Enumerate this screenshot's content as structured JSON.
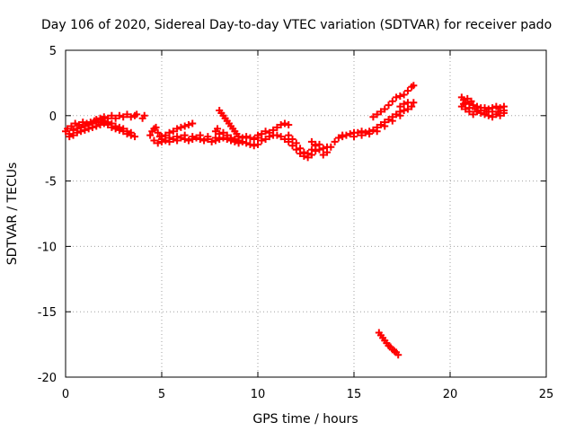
{
  "chart_data": {
    "type": "scatter",
    "title": "Day 106 of 2020, Sidereal Day-to-day VTEC variation (SDTVAR) for receiver pado",
    "xlabel": "GPS time / hours",
    "ylabel": "SDTVAR / TECUs",
    "xlim": [
      0,
      25
    ],
    "ylim": [
      -20,
      5
    ],
    "xticks": [
      "0",
      "5",
      "10",
      "15",
      "20",
      "25"
    ],
    "yticks": [
      "5",
      "0",
      "-5",
      "-10",
      "-15",
      "-20"
    ],
    "grid": true,
    "marker": "plus",
    "series_color": "#ff0000",
    "series": [
      {
        "name": "SDTVAR",
        "points": [
          [
            0.0,
            -1.2
          ],
          [
            0.1,
            -1.0
          ],
          [
            0.2,
            -1.4
          ],
          [
            0.3,
            -0.8
          ],
          [
            0.4,
            -1.1
          ],
          [
            0.5,
            -0.6
          ],
          [
            0.6,
            -1.0
          ],
          [
            0.7,
            -0.7
          ],
          [
            0.8,
            -0.9
          ],
          [
            0.9,
            -0.5
          ],
          [
            1.0,
            -0.8
          ],
          [
            1.1,
            -0.6
          ],
          [
            1.2,
            -0.7
          ],
          [
            1.3,
            -0.5
          ],
          [
            1.4,
            -0.6
          ],
          [
            1.5,
            -0.4
          ],
          [
            1.6,
            -0.3
          ],
          [
            1.7,
            -0.5
          ],
          [
            1.8,
            -0.2
          ],
          [
            1.9,
            -0.3
          ],
          [
            2.0,
            -0.1
          ],
          [
            2.2,
            -0.2
          ],
          [
            2.4,
            0.0
          ],
          [
            2.6,
            -0.2
          ],
          [
            2.8,
            0.0
          ],
          [
            3.0,
            -0.1
          ],
          [
            3.2,
            0.1
          ],
          [
            3.4,
            -0.1
          ],
          [
            3.6,
            0.0
          ],
          [
            0.2,
            -1.6
          ],
          [
            0.4,
            -1.5
          ],
          [
            0.6,
            -1.3
          ],
          [
            0.8,
            -1.2
          ],
          [
            1.0,
            -1.1
          ],
          [
            1.2,
            -1.0
          ],
          [
            1.4,
            -0.9
          ],
          [
            1.6,
            -0.8
          ],
          [
            1.8,
            -0.7
          ],
          [
            2.0,
            -0.6
          ],
          [
            2.2,
            -0.7
          ],
          [
            2.4,
            -0.9
          ],
          [
            2.6,
            -1.0
          ],
          [
            2.8,
            -1.1
          ],
          [
            3.0,
            -1.2
          ],
          [
            3.2,
            -1.4
          ],
          [
            3.4,
            -1.5
          ],
          [
            3.6,
            -1.6
          ],
          [
            1.8,
            -0.5
          ],
          [
            2.0,
            -0.4
          ],
          [
            2.2,
            -0.5
          ],
          [
            2.4,
            -0.6
          ],
          [
            2.6,
            -0.8
          ],
          [
            2.8,
            -0.9
          ],
          [
            3.0,
            -1.0
          ],
          [
            3.2,
            -1.2
          ],
          [
            3.4,
            -1.3
          ],
          [
            3.7,
            0.1
          ],
          [
            4.0,
            -0.2
          ],
          [
            4.1,
            0.0
          ],
          [
            4.4,
            -1.5
          ],
          [
            4.5,
            -1.2
          ],
          [
            4.6,
            -1.0
          ],
          [
            4.7,
            -0.9
          ],
          [
            4.8,
            -1.3
          ],
          [
            4.9,
            -1.6
          ],
          [
            5.0,
            -1.8
          ],
          [
            5.2,
            -1.5
          ],
          [
            5.4,
            -1.3
          ],
          [
            5.6,
            -1.2
          ],
          [
            5.8,
            -1.0
          ],
          [
            6.0,
            -0.9
          ],
          [
            6.2,
            -0.8
          ],
          [
            6.4,
            -0.7
          ],
          [
            6.6,
            -0.6
          ],
          [
            4.6,
            -1.9
          ],
          [
            4.8,
            -2.1
          ],
          [
            5.0,
            -2.0
          ],
          [
            5.2,
            -1.9
          ],
          [
            5.4,
            -2.0
          ],
          [
            5.6,
            -1.8
          ],
          [
            5.8,
            -1.9
          ],
          [
            6.0,
            -1.7
          ],
          [
            6.2,
            -1.8
          ],
          [
            6.4,
            -1.9
          ],
          [
            6.6,
            -1.8
          ],
          [
            6.8,
            -1.7
          ],
          [
            7.0,
            -1.8
          ],
          [
            7.2,
            -1.9
          ],
          [
            7.4,
            -1.8
          ],
          [
            7.6,
            -2.0
          ],
          [
            7.8,
            -1.9
          ],
          [
            8.0,
            -1.8
          ],
          [
            8.2,
            -1.7
          ],
          [
            8.4,
            -1.8
          ],
          [
            8.6,
            -1.9
          ],
          [
            8.8,
            -2.0
          ],
          [
            9.0,
            -2.1
          ],
          [
            9.2,
            -2.0
          ],
          [
            9.4,
            -2.1
          ],
          [
            9.6,
            -2.2
          ],
          [
            9.8,
            -2.3
          ],
          [
            10.0,
            -2.2
          ],
          [
            5.0,
            -1.6
          ],
          [
            5.4,
            -1.7
          ],
          [
            5.8,
            -1.6
          ],
          [
            6.2,
            -1.5
          ],
          [
            6.6,
            -1.6
          ],
          [
            7.0,
            -1.5
          ],
          [
            7.4,
            -1.6
          ],
          [
            7.8,
            -1.7
          ],
          [
            7.8,
            -1.2
          ],
          [
            7.9,
            -1.0
          ],
          [
            8.0,
            -1.4
          ],
          [
            8.0,
            0.4
          ],
          [
            8.1,
            0.2
          ],
          [
            8.2,
            0.0
          ],
          [
            8.3,
            -0.2
          ],
          [
            8.4,
            -0.4
          ],
          [
            8.5,
            -0.6
          ],
          [
            8.6,
            -0.8
          ],
          [
            8.7,
            -1.0
          ],
          [
            8.8,
            -1.2
          ],
          [
            8.9,
            -1.4
          ],
          [
            9.0,
            -1.6
          ],
          [
            9.2,
            -1.7
          ],
          [
            9.4,
            -1.6
          ],
          [
            9.6,
            -1.7
          ],
          [
            9.8,
            -1.8
          ],
          [
            10.0,
            -1.7
          ],
          [
            8.2,
            -1.3
          ],
          [
            8.4,
            -1.5
          ],
          [
            8.6,
            -1.7
          ],
          [
            8.8,
            -1.8
          ],
          [
            9.0,
            -1.9
          ],
          [
            10.0,
            -1.5
          ],
          [
            10.2,
            -1.4
          ],
          [
            10.4,
            -1.2
          ],
          [
            10.6,
            -1.3
          ],
          [
            10.8,
            -1.1
          ],
          [
            11.0,
            -0.9
          ],
          [
            11.2,
            -0.7
          ],
          [
            11.4,
            -0.6
          ],
          [
            11.6,
            -0.7
          ],
          [
            10.2,
            -1.9
          ],
          [
            10.4,
            -1.8
          ],
          [
            10.6,
            -1.6
          ],
          [
            10.8,
            -1.5
          ],
          [
            11.0,
            -1.5
          ],
          [
            11.2,
            -1.6
          ],
          [
            11.4,
            -1.8
          ],
          [
            11.6,
            -2.0
          ],
          [
            11.8,
            -2.3
          ],
          [
            12.0,
            -2.6
          ],
          [
            12.2,
            -2.9
          ],
          [
            12.4,
            -3.1
          ],
          [
            12.6,
            -3.2
          ],
          [
            12.8,
            -3.0
          ],
          [
            13.0,
            -2.7
          ],
          [
            11.6,
            -1.5
          ],
          [
            11.8,
            -1.8
          ],
          [
            12.0,
            -2.1
          ],
          [
            12.2,
            -2.5
          ],
          [
            12.4,
            -2.8
          ],
          [
            12.6,
            -2.9
          ],
          [
            12.8,
            -2.6
          ],
          [
            13.0,
            -2.3
          ],
          [
            13.2,
            -2.2
          ],
          [
            13.4,
            -2.5
          ],
          [
            13.6,
            -2.4
          ],
          [
            12.8,
            -2.0
          ],
          [
            13.0,
            -2.2
          ],
          [
            13.2,
            -2.6
          ],
          [
            13.4,
            -3.0
          ],
          [
            13.6,
            -2.8
          ],
          [
            13.8,
            -2.4
          ],
          [
            14.0,
            -2.0
          ],
          [
            14.2,
            -1.7
          ],
          [
            14.4,
            -1.5
          ],
          [
            14.4,
            -1.6
          ],
          [
            14.6,
            -1.5
          ],
          [
            14.8,
            -1.4
          ],
          [
            15.0,
            -1.3
          ],
          [
            15.2,
            -1.3
          ],
          [
            15.4,
            -1.2
          ],
          [
            15.6,
            -1.3
          ],
          [
            15.8,
            -1.2
          ],
          [
            16.0,
            -1.1
          ],
          [
            16.2,
            -0.9
          ],
          [
            16.4,
            -0.7
          ],
          [
            16.6,
            -0.5
          ],
          [
            16.8,
            -0.3
          ],
          [
            17.0,
            -0.1
          ],
          [
            17.2,
            0.1
          ],
          [
            17.4,
            0.3
          ],
          [
            17.6,
            0.4
          ],
          [
            17.8,
            0.5
          ],
          [
            15.0,
            -1.6
          ],
          [
            15.4,
            -1.5
          ],
          [
            15.8,
            -1.4
          ],
          [
            16.2,
            -1.2
          ],
          [
            16.6,
            -0.8
          ],
          [
            17.0,
            -0.4
          ],
          [
            17.4,
            0.0
          ],
          [
            16.0,
            -0.1
          ],
          [
            16.2,
            0.1
          ],
          [
            16.4,
            0.3
          ],
          [
            16.6,
            0.5
          ],
          [
            16.8,
            0.8
          ],
          [
            17.0,
            1.1
          ],
          [
            17.2,
            1.4
          ],
          [
            17.4,
            1.5
          ],
          [
            17.6,
            1.6
          ],
          [
            17.8,
            1.9
          ],
          [
            18.0,
            2.2
          ],
          [
            18.1,
            2.3
          ],
          [
            17.4,
            0.7
          ],
          [
            17.6,
            0.9
          ],
          [
            17.8,
            1.0
          ],
          [
            18.0,
            0.7
          ],
          [
            18.1,
            1.0
          ],
          [
            16.3,
            -16.6
          ],
          [
            16.4,
            -16.8
          ],
          [
            16.5,
            -17.0
          ],
          [
            16.6,
            -17.2
          ],
          [
            16.7,
            -17.4
          ],
          [
            16.8,
            -17.6
          ],
          [
            16.9,
            -17.7
          ],
          [
            17.0,
            -17.9
          ],
          [
            17.1,
            -18.0
          ],
          [
            17.2,
            -18.1
          ],
          [
            17.3,
            -18.3
          ],
          [
            20.6,
            1.4
          ],
          [
            20.7,
            1.2
          ],
          [
            20.8,
            1.0
          ],
          [
            20.9,
            1.3
          ],
          [
            21.0,
            0.9
          ],
          [
            21.1,
            1.1
          ],
          [
            21.2,
            0.8
          ],
          [
            21.4,
            0.7
          ],
          [
            21.6,
            0.6
          ],
          [
            21.8,
            0.6
          ],
          [
            22.0,
            0.5
          ],
          [
            22.2,
            0.6
          ],
          [
            22.4,
            0.7
          ],
          [
            22.6,
            0.6
          ],
          [
            22.8,
            0.7
          ],
          [
            20.6,
            0.7
          ],
          [
            20.8,
            0.5
          ],
          [
            21.0,
            0.3
          ],
          [
            21.2,
            0.1
          ],
          [
            21.4,
            0.3
          ],
          [
            21.6,
            0.2
          ],
          [
            21.8,
            0.1
          ],
          [
            22.0,
            0.0
          ],
          [
            22.2,
            -0.1
          ],
          [
            22.4,
            0.1
          ],
          [
            22.6,
            0.0
          ],
          [
            22.8,
            0.2
          ],
          [
            20.7,
            0.9
          ],
          [
            21.0,
            0.6
          ],
          [
            21.3,
            0.5
          ],
          [
            21.6,
            0.4
          ],
          [
            21.9,
            0.3
          ],
          [
            22.2,
            0.3
          ],
          [
            22.5,
            0.3
          ],
          [
            22.8,
            0.4
          ]
        ]
      }
    ]
  }
}
